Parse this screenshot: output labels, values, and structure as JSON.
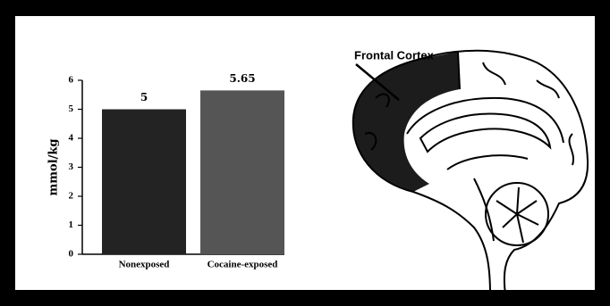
{
  "chart_data": {
    "type": "bar",
    "ylabel": "mmol/kg",
    "categories": [
      "Nonexposed",
      "Cocaine-exposed"
    ],
    "series": [
      {
        "name": null,
        "values": [
          5,
          5.65
        ]
      }
    ],
    "colors": [
      "#232323",
      "#555555"
    ],
    "ylim": [
      0,
      6
    ],
    "yticks": [
      0,
      1,
      2,
      3,
      4,
      5,
      6
    ],
    "grid": false
  },
  "illustration": {
    "label": "Frontal Cortex"
  }
}
